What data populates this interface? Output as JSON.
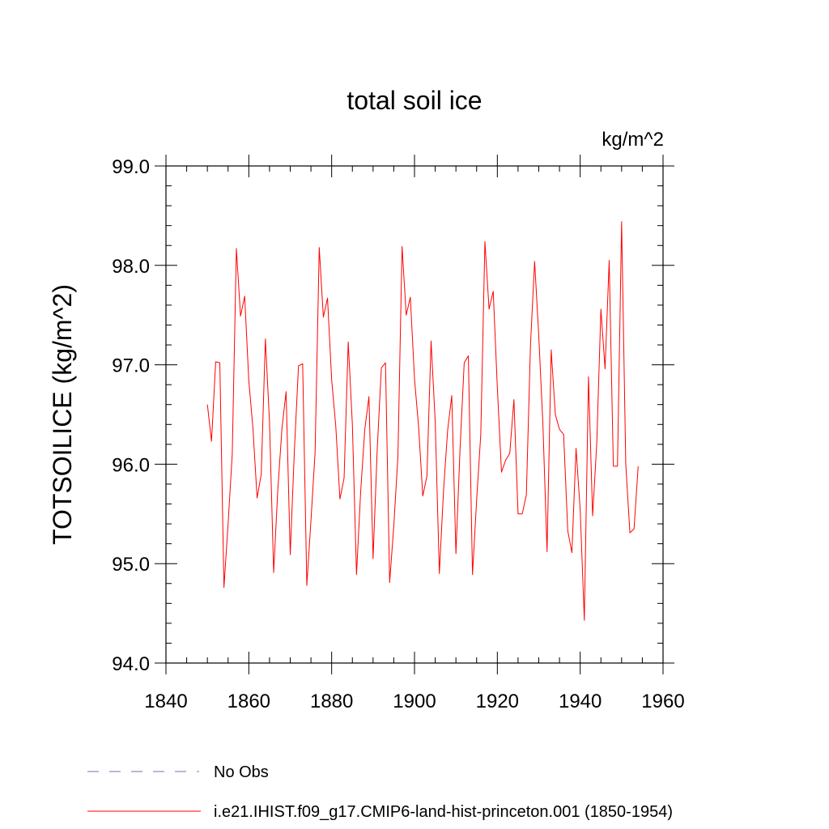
{
  "chart_data": {
    "type": "line",
    "title": "total soil ice",
    "units_label": "kg/m^2",
    "ylabel": "TOTSOILICE  (kg/m^2)",
    "xlabel": "",
    "xlim": [
      1840,
      1960
    ],
    "ylim": [
      94.0,
      99.0
    ],
    "x_ticks": [
      1840,
      1860,
      1880,
      1900,
      1920,
      1940,
      1960
    ],
    "y_ticks": [
      94.0,
      95.0,
      96.0,
      97.0,
      98.0,
      99.0
    ],
    "x_tick_labels": [
      "1840",
      "1860",
      "1880",
      "1900",
      "1920",
      "1940",
      "1960"
    ],
    "y_tick_labels": [
      "94.0",
      "95.0",
      "96.0",
      "97.0",
      "98.0",
      "99.0"
    ],
    "grid": false,
    "legend_position": "bottom-left",
    "series": [
      {
        "name": "No Obs",
        "color": "#7a6fb5",
        "style": "dashed",
        "x": [],
        "y": []
      },
      {
        "name": "i.e21.IHIST.f09_g17.CMIP6-land-hist-princeton.001 (1850-1954)",
        "color": "#ff0000",
        "style": "solid",
        "x": [
          1850,
          1851,
          1852,
          1853,
          1854,
          1855,
          1856,
          1857,
          1858,
          1859,
          1860,
          1861,
          1862,
          1863,
          1864,
          1865,
          1866,
          1867,
          1868,
          1869,
          1870,
          1871,
          1872,
          1873,
          1874,
          1875,
          1876,
          1877,
          1878,
          1879,
          1880,
          1881,
          1882,
          1883,
          1884,
          1885,
          1886,
          1887,
          1888,
          1889,
          1890,
          1891,
          1892,
          1893,
          1894,
          1895,
          1896,
          1897,
          1898,
          1899,
          1900,
          1901,
          1902,
          1903,
          1904,
          1905,
          1906,
          1907,
          1908,
          1909,
          1910,
          1911,
          1912,
          1913,
          1914,
          1915,
          1916,
          1917,
          1918,
          1919,
          1920,
          1921,
          1922,
          1923,
          1924,
          1925,
          1926,
          1927,
          1928,
          1929,
          1930,
          1931,
          1932,
          1933,
          1934,
          1935,
          1936,
          1937,
          1938,
          1939,
          1940,
          1941,
          1942,
          1943,
          1944,
          1945,
          1946,
          1947,
          1948,
          1949,
          1950,
          1951,
          1952,
          1953,
          1954
        ],
        "y": [
          96.6,
          96.23,
          97.03,
          97.02,
          94.76,
          95.4,
          96.1,
          98.17,
          97.49,
          97.69,
          96.84,
          96.36,
          95.66,
          95.9,
          97.26,
          96.42,
          94.91,
          95.74,
          96.36,
          96.73,
          95.09,
          96.14,
          96.99,
          97.01,
          94.78,
          95.43,
          96.12,
          98.18,
          97.48,
          97.67,
          96.85,
          96.38,
          95.65,
          95.86,
          97.23,
          96.4,
          94.89,
          95.72,
          96.35,
          96.68,
          95.05,
          96.15,
          96.97,
          97.02,
          94.81,
          95.38,
          96.08,
          98.19,
          97.5,
          97.68,
          96.86,
          96.37,
          95.68,
          95.88,
          97.24,
          96.43,
          94.9,
          95.73,
          96.34,
          96.69,
          95.1,
          96.16,
          97.02,
          97.09,
          94.89,
          95.64,
          96.3,
          98.24,
          97.56,
          97.74,
          96.77,
          95.92,
          96.04,
          96.11,
          96.65,
          95.5,
          95.5,
          95.69,
          97.2,
          98.04,
          97.29,
          96.4,
          95.12,
          97.15,
          96.5,
          96.35,
          96.3,
          95.33,
          95.11,
          96.16,
          95.54,
          94.43,
          96.88,
          95.48,
          96.21,
          97.56,
          96.96,
          98.05,
          95.98,
          95.98,
          98.44,
          96.0,
          95.31,
          95.35,
          95.98
        ]
      }
    ]
  }
}
